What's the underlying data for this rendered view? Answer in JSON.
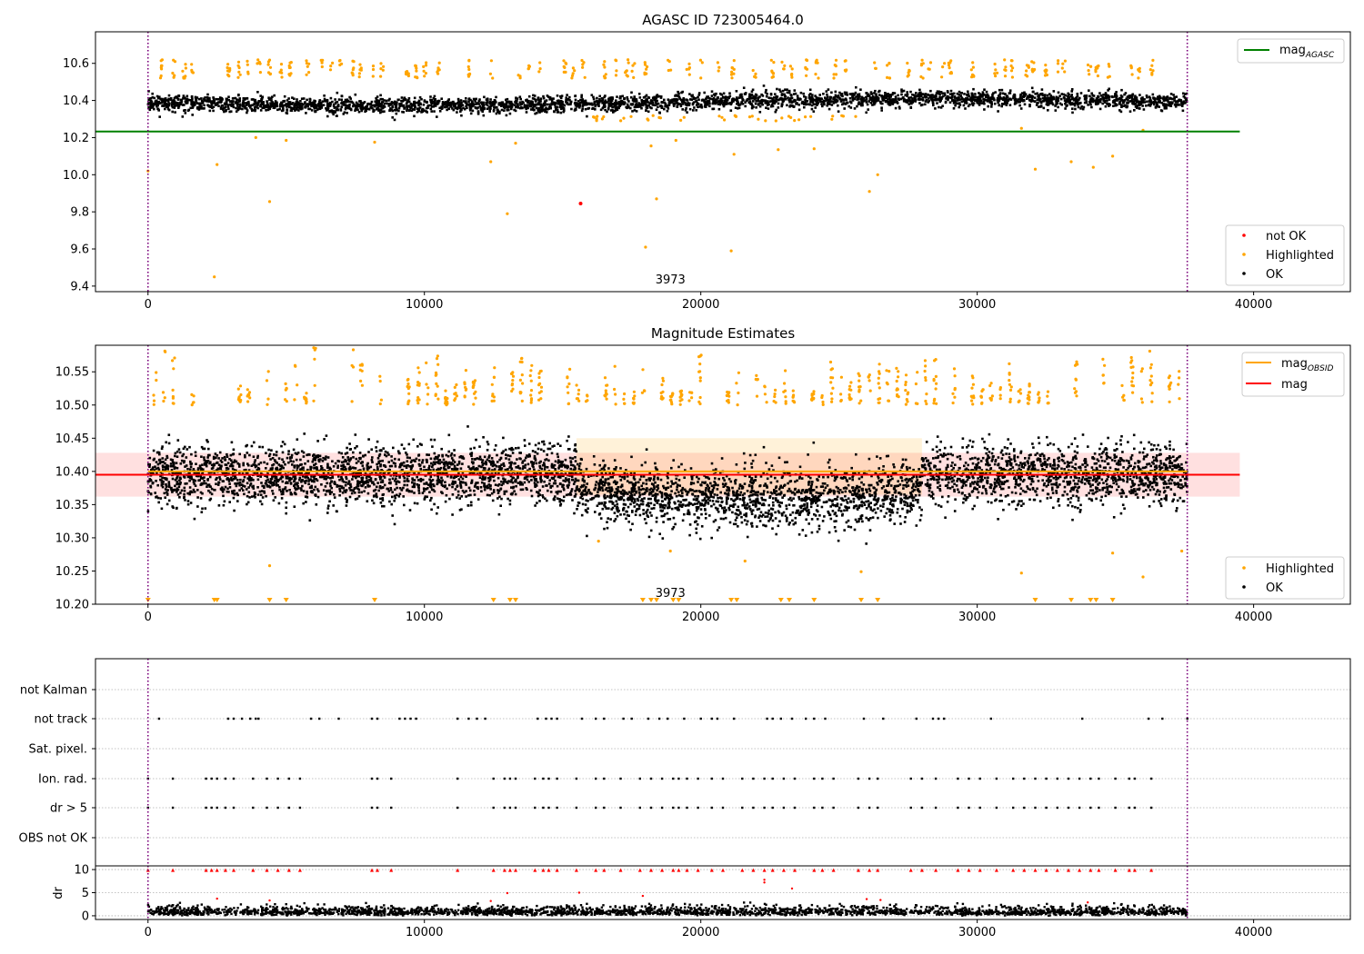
{
  "chart_data": [
    {
      "type": "scatter",
      "title": "AGASC ID 723005464.0",
      "xlim": [
        -1900,
        43500
      ],
      "ylim": [
        9.37,
        10.77
      ],
      "x_ticks": [
        0,
        10000,
        20000,
        30000,
        40000
      ],
      "x_tick_labels": [
        "0",
        "10000",
        "20000",
        "30000",
        "40000"
      ],
      "y_ticks": [
        9.4,
        9.6,
        9.8,
        10.0,
        10.2,
        10.4,
        10.6
      ],
      "y_tick_labels": [
        "9.4",
        "9.6",
        "9.8",
        "10.0",
        "10.2",
        "10.4",
        "10.6"
      ],
      "annotation": "3973",
      "annotation_x": 18900,
      "obs_boundaries_x": [
        0,
        37600
      ],
      "lines": [
        {
          "name": "mag",
          "subscript": "AGASC",
          "color": "#008000",
          "y": 10.233,
          "x_range": [
            -1900,
            39500
          ]
        }
      ],
      "series": [
        {
          "name": "not OK",
          "color": "#ff0000",
          "points": [
            [
              15650,
              9.845
            ]
          ]
        },
        {
          "name": "Highlighted",
          "color": "#ffa500",
          "points": [
            [
              2400,
              9.45
            ],
            [
              4400,
              9.855
            ],
            [
              8200,
              10.175
            ],
            [
              12400,
              10.07
            ],
            [
              13000,
              9.79
            ],
            [
              18000,
              9.61
            ],
            [
              18400,
              9.87
            ],
            [
              21100,
              9.59
            ],
            [
              26100,
              9.91
            ],
            [
              26400,
              10.0
            ],
            [
              32100,
              10.03
            ],
            [
              34200,
              10.04
            ],
            [
              3900,
              10.2
            ],
            [
              5000,
              10.185
            ],
            [
              13300,
              10.17
            ],
            [
              18200,
              10.155
            ],
            [
              24100,
              10.14
            ],
            [
              21200,
              10.11
            ],
            [
              34900,
              10.1
            ],
            [
              33400,
              10.07
            ],
            [
              2500,
              10.055
            ],
            [
              0,
              10.02
            ],
            [
              22800,
              10.135
            ],
            [
              19100,
              10.185
            ],
            [
              31600,
              10.25
            ],
            [
              36000,
              10.24
            ]
          ]
        },
        {
          "name": "OK",
          "color": "#000000",
          "points": []
        }
      ],
      "legend_upper": "top-right",
      "legend_lower": "bottom-right"
    },
    {
      "type": "scatter",
      "title": "Magnitude Estimates",
      "xlim": [
        -1900,
        43500
      ],
      "ylim": [
        10.2,
        10.59
      ],
      "x_ticks": [
        0,
        10000,
        20000,
        30000,
        40000
      ],
      "x_tick_labels": [
        "0",
        "10000",
        "20000",
        "30000",
        "40000"
      ],
      "y_ticks": [
        10.2,
        10.25,
        10.3,
        10.35,
        10.4,
        10.45,
        10.5,
        10.55
      ],
      "y_tick_labels": [
        "10.20",
        "10.25",
        "10.30",
        "10.35",
        "10.40",
        "10.45",
        "10.50",
        "10.55"
      ],
      "annotation": "3973",
      "annotation_x": 18900,
      "obs_boundaries_x": [
        0,
        37600
      ],
      "lines": [
        {
          "name": "mag",
          "subscript": "OBSID",
          "color": "#ffa500",
          "y": 10.4,
          "x_range": [
            0,
            37600
          ],
          "band": [
            10.36,
            10.44
          ]
        },
        {
          "name": "mag",
          "subscript": "",
          "color": "#ff0000",
          "y": 10.395,
          "x_range": [
            -1900,
            39500
          ],
          "band": [
            10.362,
            10.428
          ]
        }
      ],
      "series": [
        {
          "name": "Highlighted",
          "color": "#ffa500",
          "points": []
        },
        {
          "name": "OK",
          "color": "#000000",
          "points": []
        }
      ],
      "clipped_low_markers_x": [
        0,
        2400,
        2500,
        4400,
        5000,
        8200,
        12500,
        13100,
        13300,
        17900,
        18200,
        18400,
        19000,
        19200,
        21100,
        21300,
        22900,
        23200,
        24100,
        25800,
        26400,
        32100,
        33400,
        34100,
        34300,
        34900
      ],
      "legend_upper": "top-right",
      "legend_lower": "bottom-right"
    },
    {
      "type": "scatter",
      "title": "",
      "xlim": [
        -1900,
        43500
      ],
      "categories": [
        "not Kalman",
        "not track",
        "Sat. pixel.",
        "Ion. rad.",
        "dr > 5",
        "OBS not OK"
      ],
      "obs_boundaries_x": [
        0,
        37600
      ],
      "flags": {
        "not Kalman": [],
        "not track": [
          400,
          2900,
          3100,
          3400,
          3700,
          3900,
          4000,
          5900,
          6200,
          6900,
          8100,
          8300,
          9100,
          9300,
          9500,
          9700,
          11200,
          11600,
          11900,
          12200,
          14100,
          14400,
          14600,
          14800,
          15700,
          16200,
          16500,
          17200,
          17500,
          18100,
          18500,
          18800,
          19400,
          20000,
          20400,
          20600,
          21200,
          22400,
          22600,
          22900,
          23300,
          23800,
          24100,
          24500,
          25900,
          26600,
          27800,
          28400,
          28600,
          28800,
          30500,
          33800,
          36200,
          36700,
          37600
        ],
        "Sat. pixel.": [],
        "Ion. rad.": [
          0,
          900,
          2100,
          2300,
          2500,
          2800,
          3100,
          3800,
          4300,
          4700,
          5100,
          5500,
          8100,
          8300,
          8800,
          11200,
          12500,
          12900,
          13100,
          13300,
          14000,
          14300,
          14500,
          14800,
          15500,
          16200,
          16500,
          17100,
          17800,
          18200,
          18600,
          19000,
          19200,
          19500,
          19900,
          20400,
          20800,
          21500,
          21900,
          22300,
          22600,
          23000,
          23400,
          24100,
          24400,
          24800,
          25700,
          26100,
          26400,
          27600,
          28000,
          28500,
          29300,
          29700,
          30100,
          30700,
          31300,
          31700,
          32100,
          32500,
          32900,
          33300,
          33700,
          34100,
          34400,
          35000,
          35500,
          35700,
          36300
        ],
        "dr > 5": [
          0,
          900,
          2100,
          2300,
          2500,
          2800,
          3100,
          3800,
          4300,
          4700,
          5100,
          5500,
          8100,
          8300,
          8800,
          11200,
          12500,
          12900,
          13100,
          13300,
          14000,
          14300,
          14500,
          14800,
          15500,
          16200,
          16500,
          17100,
          17800,
          18200,
          18600,
          19000,
          19200,
          19500,
          19900,
          20400,
          20800,
          21500,
          21900,
          22300,
          22600,
          23000,
          23400,
          24100,
          24400,
          24800,
          25700,
          26100,
          26400,
          27600,
          28000,
          28500,
          29300,
          29700,
          30100,
          30700,
          31300,
          31700,
          32100,
          32500,
          32900,
          33300,
          33700,
          34100,
          34400,
          35000,
          35500,
          35700,
          36300
        ],
        "OBS not OK": []
      }
    },
    {
      "type": "scatter",
      "title": "",
      "ylabel": "dr",
      "xlim": [
        -1900,
        43500
      ],
      "ylim": [
        -0.8,
        10.8
      ],
      "x_ticks": [
        0,
        10000,
        20000,
        30000,
        40000
      ],
      "x_tick_labels": [
        "0",
        "10000",
        "20000",
        "30000",
        "40000"
      ],
      "y_ticks": [
        0,
        5,
        10
      ],
      "y_tick_labels": [
        "0",
        "5",
        "10"
      ],
      "obs_boundaries_x": [
        0,
        37600
      ],
      "series": [
        {
          "name": "dr OK",
          "color": "#000000",
          "points": []
        },
        {
          "name": "dr not OK",
          "color": "#ff0000",
          "points": [
            [
              2500,
              3.7
            ],
            [
              4400,
              3.3
            ],
            [
              12400,
              3.2
            ],
            [
              13000,
              4.9
            ],
            [
              15600,
              5.0
            ],
            [
              17900,
              4.3
            ],
            [
              22300,
              7.8
            ],
            [
              22300,
              7.2
            ],
            [
              23300,
              5.9
            ],
            [
              26000,
              3.6
            ],
            [
              26500,
              3.4
            ],
            [
              34000,
              2.9
            ]
          ]
        }
      ]
    }
  ],
  "legends": {
    "top_upper": [
      {
        "label": "mag",
        "subscript": "AGASC",
        "color": "#008000",
        "kind": "line"
      }
    ],
    "top_lower": [
      {
        "label": "not OK",
        "color": "#ff0000",
        "kind": "dot"
      },
      {
        "label": "Highlighted",
        "color": "#ffa500",
        "kind": "dot"
      },
      {
        "label": "OK",
        "color": "#000000",
        "kind": "dot"
      }
    ],
    "mid_upper": [
      {
        "label": "mag",
        "subscript": "OBSID",
        "color": "#ffa500",
        "kind": "line"
      },
      {
        "label": "mag",
        "subscript": "",
        "color": "#ff0000",
        "kind": "line"
      }
    ],
    "mid_lower": [
      {
        "label": "Highlighted",
        "color": "#ffa500",
        "kind": "dot"
      },
      {
        "label": "OK",
        "color": "#000000",
        "kind": "dot"
      }
    ]
  }
}
